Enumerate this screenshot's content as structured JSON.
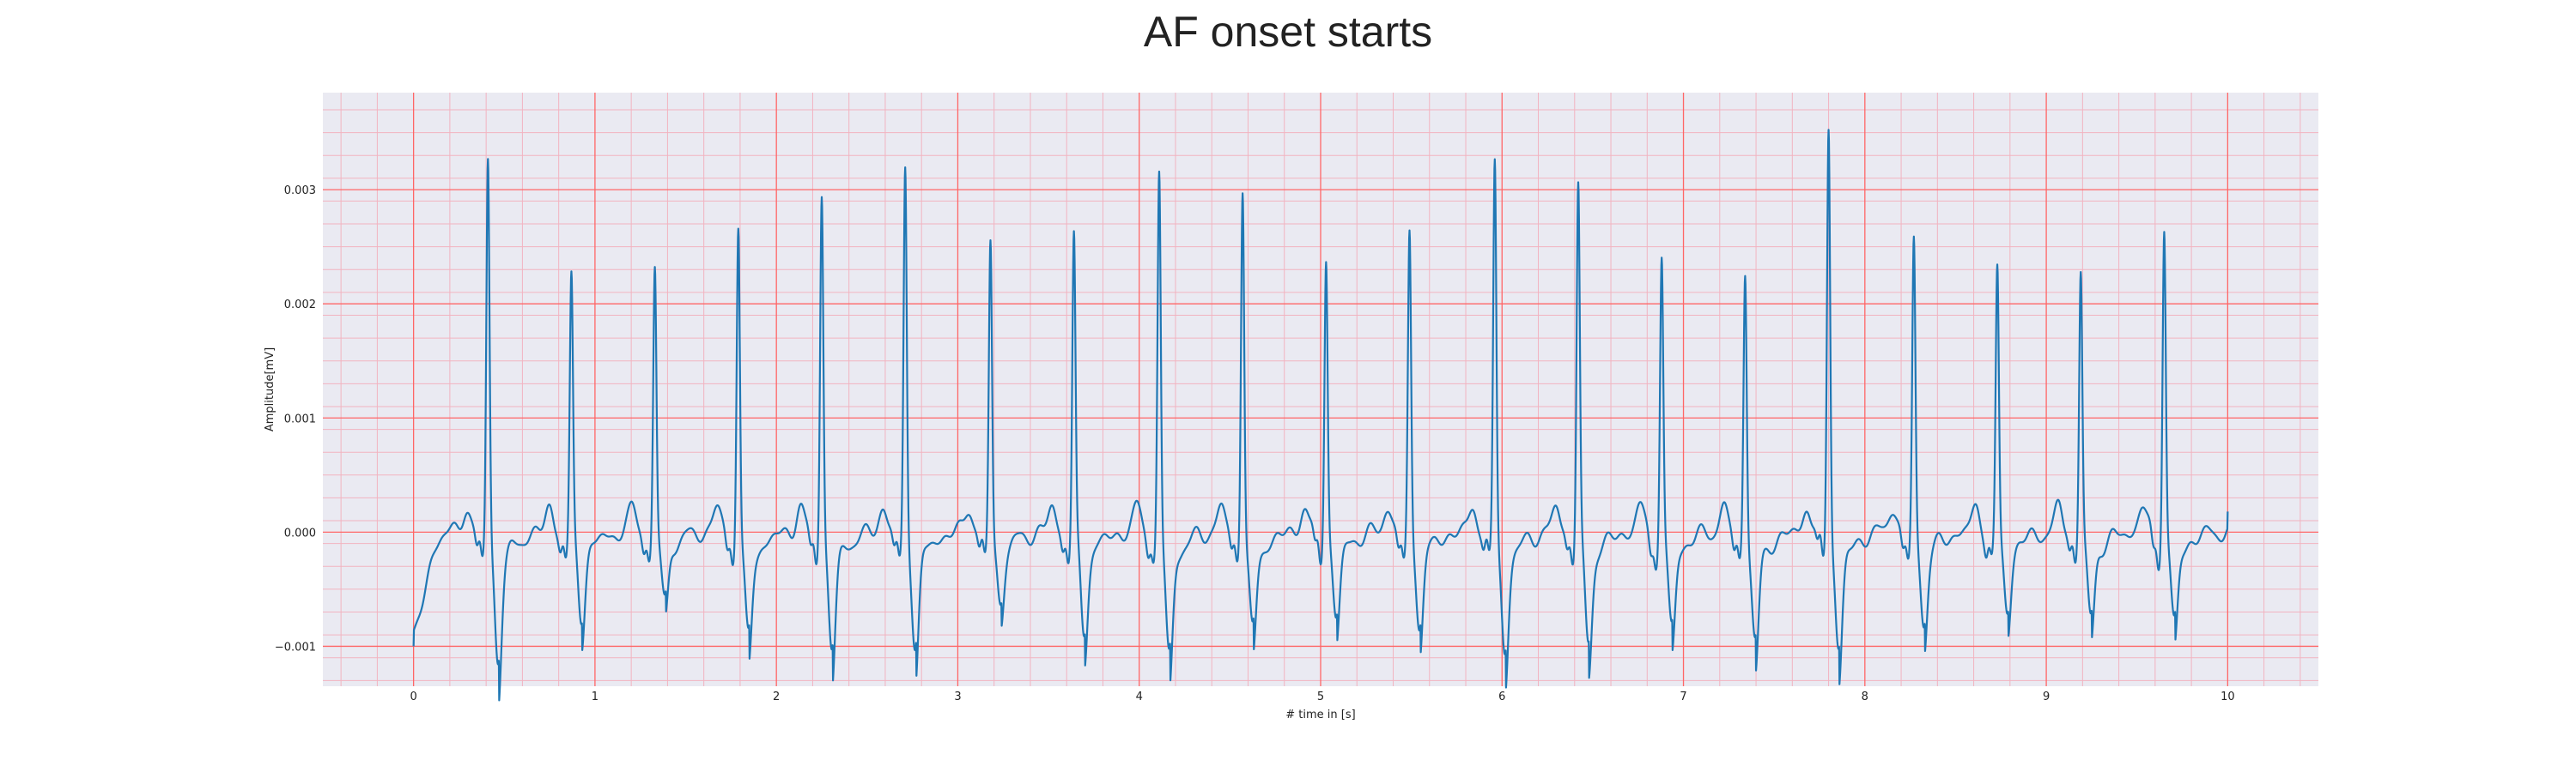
{
  "chart_data": {
    "type": "line",
    "title": "AF onset starts",
    "xlabel": "# time in [s]",
    "ylabel": "Amplitude[mV]",
    "xlim": [
      -0.5,
      10.5
    ],
    "ylim": [
      -0.00135,
      0.00385
    ],
    "x_ticks": [
      0,
      1,
      2,
      3,
      4,
      5,
      6,
      7,
      8,
      9,
      10
    ],
    "x_tick_labels": [
      "0",
      "1",
      "2",
      "3",
      "4",
      "5",
      "6",
      "7",
      "8",
      "9",
      "10"
    ],
    "y_ticks": [
      -0.001,
      0.0,
      0.001,
      0.002,
      0.003
    ],
    "y_tick_labels": [
      "−0.001",
      "0.000",
      "0.001",
      "0.002",
      "0.003"
    ],
    "grid": {
      "major": true,
      "minor": true,
      "major_color": "#ff6666",
      "minor_color": "#f2b3c0"
    },
    "background_color": "#eaeaf2",
    "series": [
      {
        "color": "#1f77b4",
        "x_start": 0,
        "x_end": 10,
        "r_peaks": [
          {
            "t": 0.41,
            "amp": 0.0033,
            "trough": -0.00112
          },
          {
            "t": 0.87,
            "amp": 0.00222,
            "trough": -0.00072
          },
          {
            "t": 1.33,
            "amp": 0.00229,
            "trough": -0.00058
          },
          {
            "t": 1.79,
            "amp": 0.00273,
            "trough": -0.00093
          },
          {
            "t": 2.25,
            "amp": 0.00299,
            "trough": -0.00101
          },
          {
            "t": 2.71,
            "amp": 0.00318,
            "trough": -0.00097
          },
          {
            "t": 3.18,
            "amp": 0.00258,
            "trough": -0.00063
          },
          {
            "t": 3.64,
            "amp": 0.0026,
            "trough": -0.00087
          },
          {
            "t": 4.11,
            "amp": 0.00312,
            "trough": -0.00105
          },
          {
            "t": 4.57,
            "amp": 0.00306,
            "trough": -0.00087
          },
          {
            "t": 5.03,
            "amp": 0.00243,
            "trough": -0.00074
          },
          {
            "t": 5.49,
            "amp": 0.0026,
            "trough": -0.00079
          },
          {
            "t": 5.96,
            "amp": 0.00328,
            "trough": -0.00105
          },
          {
            "t": 6.42,
            "amp": 0.00305,
            "trough": -0.00096
          },
          {
            "t": 6.88,
            "amp": 0.00238,
            "trough": -0.00081
          },
          {
            "t": 7.34,
            "amp": 0.00231,
            "trough": -0.00096
          },
          {
            "t": 7.8,
            "amp": 0.0036,
            "trough": -0.00101
          },
          {
            "t": 8.27,
            "amp": 0.00255,
            "trough": -0.00078
          },
          {
            "t": 8.73,
            "amp": 0.0023,
            "trough": -0.00068
          },
          {
            "t": 9.19,
            "amp": 0.0023,
            "trough": -0.00075
          },
          {
            "t": 9.65,
            "amp": 0.00267,
            "trough": -0.00079
          }
        ],
        "start_value": -0.001,
        "end_value": 0.00018
      }
    ]
  }
}
